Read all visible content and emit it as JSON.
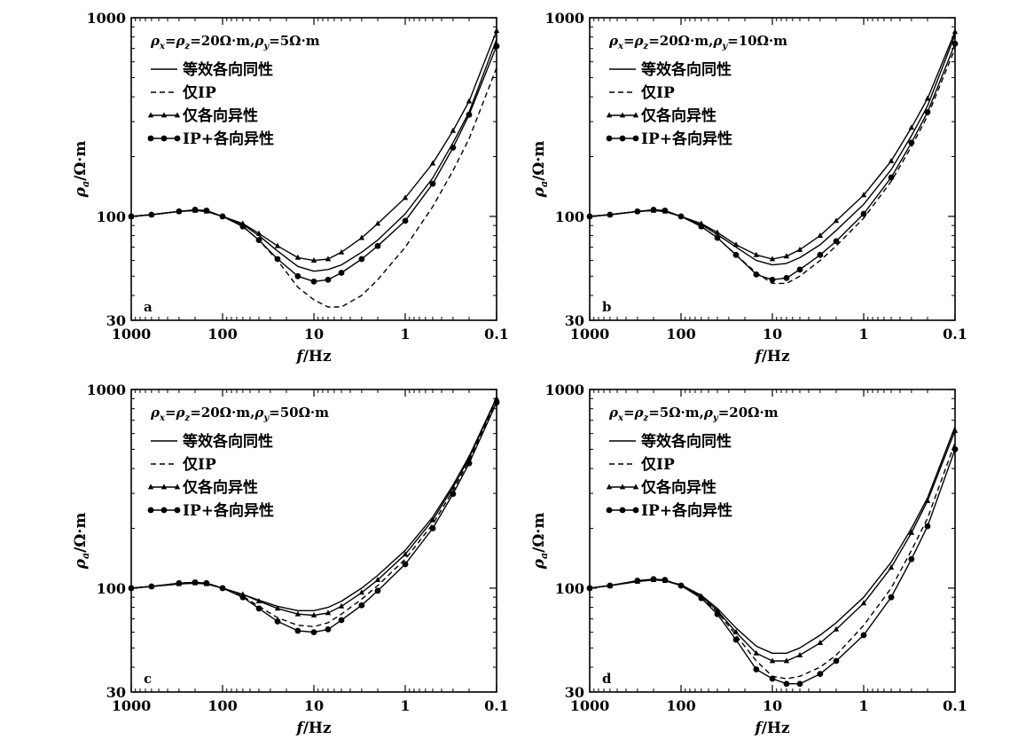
{
  "figure": {
    "background": "#ffffff"
  },
  "legend_labels": {
    "equivalent": "等效各向同性",
    "ip_only": "仅IP",
    "aniso_only": "仅各向异性",
    "ip_aniso": "IP+各向异性"
  },
  "chart_data": [
    {
      "type": "line",
      "panel": "a",
      "title": "ρx=ρz=20Ω·m,ρy=5Ω·m",
      "title_parts": [
        [
          "ρ",
          "",
          ""
        ],
        [
          "x",
          "sub",
          ""
        ],
        [
          "=",
          ""
        ],
        [
          "ρ",
          ""
        ],
        [
          "z",
          "sub"
        ],
        [
          "=20Ω·m,",
          ""
        ],
        [
          "ρ",
          ""
        ],
        [
          "y",
          "sub"
        ],
        [
          "=5Ω·m",
          ""
        ]
      ],
      "xlabel": "f/Hz",
      "ylabel": "ρa/Ω·m",
      "xscale": "log",
      "yscale": "log",
      "xlim": [
        1000,
        0.1
      ],
      "ylim": [
        30,
        1000
      ],
      "xticks": [
        1000,
        100,
        10,
        1,
        0.1
      ],
      "xticklabels": [
        "1000",
        "100",
        "10",
        "1",
        "0.1"
      ],
      "yticks": [
        30,
        100,
        1000
      ],
      "yticklabels": [
        "30",
        "100",
        "1000"
      ],
      "legend_position": "top-left",
      "series": [
        {
          "name": "等效各向同性",
          "style": "solid",
          "x": [
            1000,
            600,
            300,
            200,
            150,
            100,
            60,
            40,
            25,
            15,
            10,
            7,
            5,
            3,
            2,
            1,
            0.5,
            0.3,
            0.2,
            0.1
          ],
          "y": [
            100,
            102,
            106,
            107,
            106,
            100,
            91,
            80,
            67,
            56,
            53,
            54,
            57,
            66,
            76,
            103,
            156,
            235,
            335,
            780
          ]
        },
        {
          "name": "仅IP",
          "style": "dashed",
          "x": [
            1000,
            600,
            300,
            200,
            150,
            100,
            60,
            40,
            25,
            15,
            10,
            7,
            5,
            3,
            2,
            1,
            0.5,
            0.3,
            0.2,
            0.1
          ],
          "y": [
            100,
            102,
            106,
            107,
            106,
            100,
            89,
            76,
            60,
            44,
            38,
            35,
            35,
            40,
            48,
            70,
            112,
            170,
            246,
            560
          ]
        },
        {
          "name": "仅各向异性",
          "style": "triangle",
          "x": [
            1000,
            600,
            300,
            200,
            150,
            100,
            60,
            40,
            25,
            15,
            10,
            7,
            5,
            3,
            2,
            1,
            0.5,
            0.3,
            0.2,
            0.1
          ],
          "y": [
            100,
            102,
            106,
            107,
            106,
            100,
            92,
            82,
            71,
            62,
            60,
            61,
            66,
            78,
            92,
            124,
            185,
            270,
            380,
            860
          ]
        },
        {
          "name": "IP+各向异性",
          "style": "circle",
          "x": [
            1000,
            600,
            300,
            200,
            150,
            100,
            60,
            40,
            25,
            15,
            10,
            7,
            5,
            3,
            2,
            1,
            0.5,
            0.3,
            0.2,
            0.1
          ],
          "y": [
            100,
            102,
            106,
            108,
            107,
            100,
            89,
            76,
            61,
            50,
            47,
            48,
            52,
            61,
            71,
            95,
            146,
            222,
            325,
            720
          ]
        }
      ]
    },
    {
      "type": "line",
      "panel": "b",
      "title": "ρx=ρz=20Ω·m,ρy=10Ω·m",
      "title_parts": [
        [
          "ρ",
          ""
        ],
        [
          "x",
          "sub"
        ],
        [
          "=",
          ""
        ],
        [
          "ρ",
          ""
        ],
        [
          "z",
          "sub"
        ],
        [
          "=20Ω·m,",
          ""
        ],
        [
          "ρ",
          ""
        ],
        [
          "y",
          "sub"
        ],
        [
          "=10Ω·m",
          ""
        ]
      ],
      "xlabel": "f/Hz",
      "ylabel": "ρa/Ω·m",
      "xscale": "log",
      "yscale": "log",
      "xlim": [
        1000,
        0.1
      ],
      "ylim": [
        30,
        1000
      ],
      "xticks": [
        1000,
        100,
        10,
        1,
        0.1
      ],
      "xticklabels": [
        "1000",
        "100",
        "10",
        "1",
        "0.1"
      ],
      "yticks": [
        30,
        100,
        1000
      ],
      "yticklabels": [
        "30",
        "100",
        "1000"
      ],
      "legend_position": "top-left",
      "series": [
        {
          "name": "等效各向同性",
          "style": "solid",
          "x": [
            1000,
            600,
            300,
            200,
            150,
            100,
            60,
            40,
            25,
            15,
            10,
            7,
            5,
            3,
            2,
            1,
            0.5,
            0.3,
            0.2,
            0.1
          ],
          "y": [
            100,
            102,
            106,
            107,
            106,
            100,
            91,
            81,
            70,
            60,
            57,
            58,
            62,
            72,
            85,
            115,
            172,
            255,
            360,
            820
          ]
        },
        {
          "name": "仅IP",
          "style": "dashed",
          "x": [
            1000,
            600,
            300,
            200,
            150,
            100,
            60,
            40,
            25,
            15,
            10,
            7,
            5,
            3,
            2,
            1,
            0.5,
            0.3,
            0.2,
            0.1
          ],
          "y": [
            100,
            102,
            106,
            107,
            106,
            100,
            89,
            78,
            64,
            52,
            46,
            46,
            50,
            60,
            71,
            98,
            150,
            225,
            320,
            700
          ]
        },
        {
          "name": "仅各向异性",
          "style": "triangle",
          "x": [
            1000,
            600,
            300,
            200,
            150,
            100,
            60,
            40,
            25,
            15,
            10,
            7,
            5,
            3,
            2,
            1,
            0.5,
            0.3,
            0.2,
            0.1
          ],
          "y": [
            100,
            102,
            106,
            107,
            106,
            100,
            92,
            83,
            72,
            64,
            61,
            63,
            68,
            80,
            95,
            128,
            190,
            280,
            392,
            850
          ]
        },
        {
          "name": "IP+各向异性",
          "style": "circle",
          "x": [
            1000,
            600,
            300,
            200,
            150,
            100,
            60,
            40,
            25,
            15,
            10,
            7,
            5,
            3,
            2,
            1,
            0.5,
            0.3,
            0.2,
            0.1
          ],
          "y": [
            100,
            102,
            106,
            108,
            107,
            100,
            89,
            78,
            64,
            51,
            48,
            49,
            54,
            64,
            75,
            103,
            157,
            235,
            335,
            740
          ]
        }
      ]
    },
    {
      "type": "line",
      "panel": "c",
      "title": "ρx=ρz=20Ω·m,ρy=50Ω·m",
      "title_parts": [
        [
          "ρ",
          ""
        ],
        [
          "x",
          "sub"
        ],
        [
          "=",
          ""
        ],
        [
          "ρ",
          ""
        ],
        [
          "z",
          "sub"
        ],
        [
          "=20Ω·m,",
          ""
        ],
        [
          "ρ",
          ""
        ],
        [
          "y",
          "sub"
        ],
        [
          "=50Ω·m",
          ""
        ]
      ],
      "xlabel": "f/Hz",
      "ylabel": "ρa/Ω·m",
      "xscale": "log",
      "yscale": "log",
      "xlim": [
        1000,
        0.1
      ],
      "ylim": [
        30,
        1000
      ],
      "xticks": [
        1000,
        100,
        10,
        1,
        0.1
      ],
      "xticklabels": [
        "1000",
        "100",
        "10",
        "1",
        "0.1"
      ],
      "yticks": [
        30,
        100,
        1000
      ],
      "yticklabels": [
        "30",
        "100",
        "1000"
      ],
      "legend_position": "top-left",
      "series": [
        {
          "name": "等效各向同性",
          "style": "solid",
          "x": [
            1000,
            600,
            300,
            200,
            150,
            100,
            60,
            40,
            25,
            15,
            10,
            7,
            5,
            3,
            2,
            1,
            0.5,
            0.3,
            0.2,
            0.1
          ],
          "y": [
            100,
            102,
            105,
            106,
            105,
            100,
            93,
            87,
            81,
            77,
            77,
            80,
            86,
            100,
            116,
            155,
            228,
            330,
            460,
            910
          ]
        },
        {
          "name": "仅IP",
          "style": "dashed",
          "x": [
            1000,
            600,
            300,
            200,
            150,
            100,
            60,
            40,
            25,
            15,
            10,
            7,
            5,
            3,
            2,
            1,
            0.5,
            0.3,
            0.2,
            0.1
          ],
          "y": [
            100,
            102,
            106,
            107,
            106,
            100,
            91,
            81,
            71,
            65,
            64,
            67,
            74,
            88,
            103,
            140,
            210,
            310,
            440,
            880
          ]
        },
        {
          "name": "仅各向异性",
          "style": "triangle",
          "x": [
            1000,
            600,
            300,
            200,
            150,
            100,
            60,
            40,
            25,
            15,
            10,
            7,
            5,
            3,
            2,
            1,
            0.5,
            0.3,
            0.2,
            0.1
          ],
          "y": [
            100,
            102,
            105,
            106,
            105,
            100,
            93,
            86,
            79,
            74,
            73,
            75,
            81,
            95,
            110,
            148,
            220,
            322,
            452,
            900
          ]
        },
        {
          "name": "IP+各向异性",
          "style": "circle",
          "x": [
            1000,
            600,
            300,
            200,
            150,
            100,
            60,
            40,
            25,
            15,
            10,
            7,
            5,
            3,
            2,
            1,
            0.5,
            0.3,
            0.2,
            0.1
          ],
          "y": [
            100,
            102,
            106,
            107,
            106,
            100,
            90,
            79,
            68,
            61,
            60,
            62,
            69,
            82,
            97,
            132,
            200,
            298,
            425,
            860
          ]
        }
      ]
    },
    {
      "type": "line",
      "panel": "d",
      "title": "ρx=ρz=5Ω·m,ρy=20Ω·m",
      "title_parts": [
        [
          "ρ",
          ""
        ],
        [
          "x",
          "sub"
        ],
        [
          "=",
          ""
        ],
        [
          "ρ",
          ""
        ],
        [
          "z",
          "sub"
        ],
        [
          "=5Ω·m,",
          ""
        ],
        [
          "ρ",
          ""
        ],
        [
          "y",
          "sub"
        ],
        [
          "=20Ω·m",
          ""
        ]
      ],
      "xlabel": "f/Hz",
      "ylabel": "ρa/Ω·m",
      "xscale": "log",
      "yscale": "log",
      "xlim": [
        1000,
        0.1
      ],
      "ylim": [
        30,
        1000
      ],
      "xticks": [
        1000,
        100,
        10,
        1,
        0.1
      ],
      "xticklabels": [
        "1000",
        "100",
        "10",
        "1",
        "0.1"
      ],
      "yticks": [
        30,
        100,
        1000
      ],
      "yticklabels": [
        "30",
        "100",
        "1000"
      ],
      "legend_position": "top-left",
      "series": [
        {
          "name": "等效各向同性",
          "style": "solid",
          "x": [
            1000,
            600,
            300,
            200,
            150,
            100,
            60,
            40,
            25,
            15,
            10,
            7,
            5,
            3,
            2,
            1,
            0.5,
            0.3,
            0.2,
            0.1
          ],
          "y": [
            100,
            103,
            108,
            110,
            109,
            104,
            92,
            79,
            63,
            51,
            47,
            47,
            50,
            58,
            67,
            90,
            135,
            200,
            285,
            650
          ]
        },
        {
          "name": "仅IP",
          "style": "dashed",
          "x": [
            1000,
            600,
            300,
            200,
            150,
            100,
            60,
            40,
            25,
            15,
            10,
            7,
            5,
            3,
            2,
            1,
            0.5,
            0.3,
            0.2,
            0.1
          ],
          "y": [
            100,
            103,
            108,
            110,
            109,
            103,
            90,
            76,
            58,
            43,
            36,
            35,
            36,
            40,
            46,
            65,
            100,
            155,
            225,
            540
          ]
        },
        {
          "name": "仅各向异性",
          "style": "triangle",
          "x": [
            1000,
            600,
            300,
            200,
            150,
            100,
            60,
            40,
            25,
            15,
            10,
            7,
            5,
            3,
            2,
            1,
            0.5,
            0.3,
            0.2,
            0.1
          ],
          "y": [
            100,
            103,
            108,
            110,
            109,
            103,
            91,
            77,
            60,
            47,
            43,
            43,
            46,
            53,
            62,
            84,
            127,
            190,
            275,
            620
          ]
        },
        {
          "name": "IP+各向异性",
          "style": "circle",
          "x": [
            1000,
            600,
            300,
            200,
            150,
            100,
            60,
            40,
            25,
            15,
            10,
            7,
            5,
            3,
            2,
            1,
            0.5,
            0.3,
            0.2,
            0.1
          ],
          "y": [
            100,
            103,
            109,
            111,
            110,
            103,
            89,
            74,
            55,
            39,
            35,
            33,
            33,
            37,
            43,
            58,
            90,
            140,
            205,
            500
          ]
        }
      ]
    }
  ]
}
